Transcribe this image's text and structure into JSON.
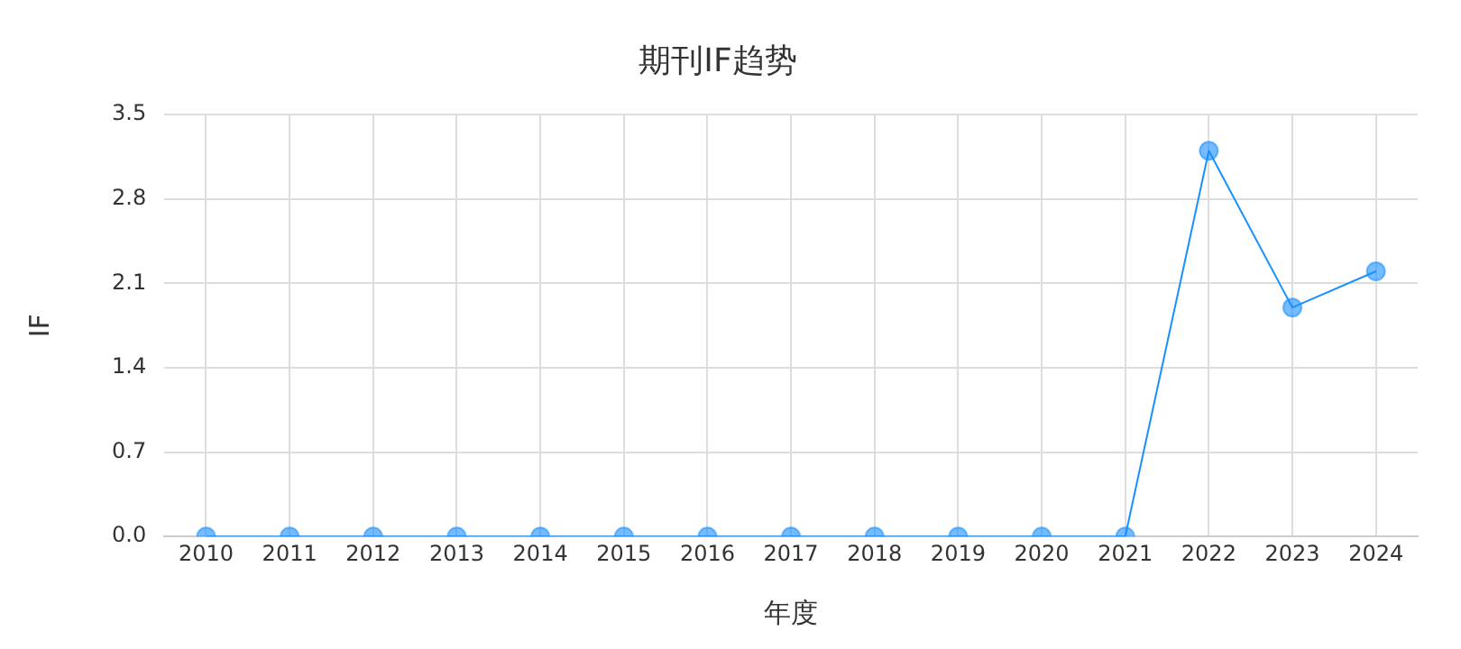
{
  "chart_data": {
    "type": "line",
    "title": "期刊IF趋势",
    "xlabel": "年度",
    "ylabel": "IF",
    "categories": [
      "2010",
      "2011",
      "2012",
      "2013",
      "2014",
      "2015",
      "2016",
      "2017",
      "2018",
      "2019",
      "2020",
      "2021",
      "2022",
      "2023",
      "2024"
    ],
    "series": [
      {
        "color": "#1890ff",
        "values": [
          0,
          0,
          0,
          0,
          0,
          0,
          0,
          0,
          0,
          0,
          0,
          0,
          3.2,
          1.9,
          2.2
        ]
      }
    ],
    "ylim": [
      0,
      3.5
    ],
    "yticks": [
      {
        "value": 0,
        "label": "0.0"
      },
      {
        "value": 0.7,
        "label": "0.7"
      },
      {
        "value": 1.4,
        "label": "1.4"
      },
      {
        "value": 2.1,
        "label": "2.1"
      },
      {
        "value": 2.8,
        "label": "2.8"
      },
      {
        "value": 3.5,
        "label": "3.5"
      }
    ],
    "grid": true,
    "legend": false,
    "marker": "circle",
    "line_style": "solid"
  }
}
